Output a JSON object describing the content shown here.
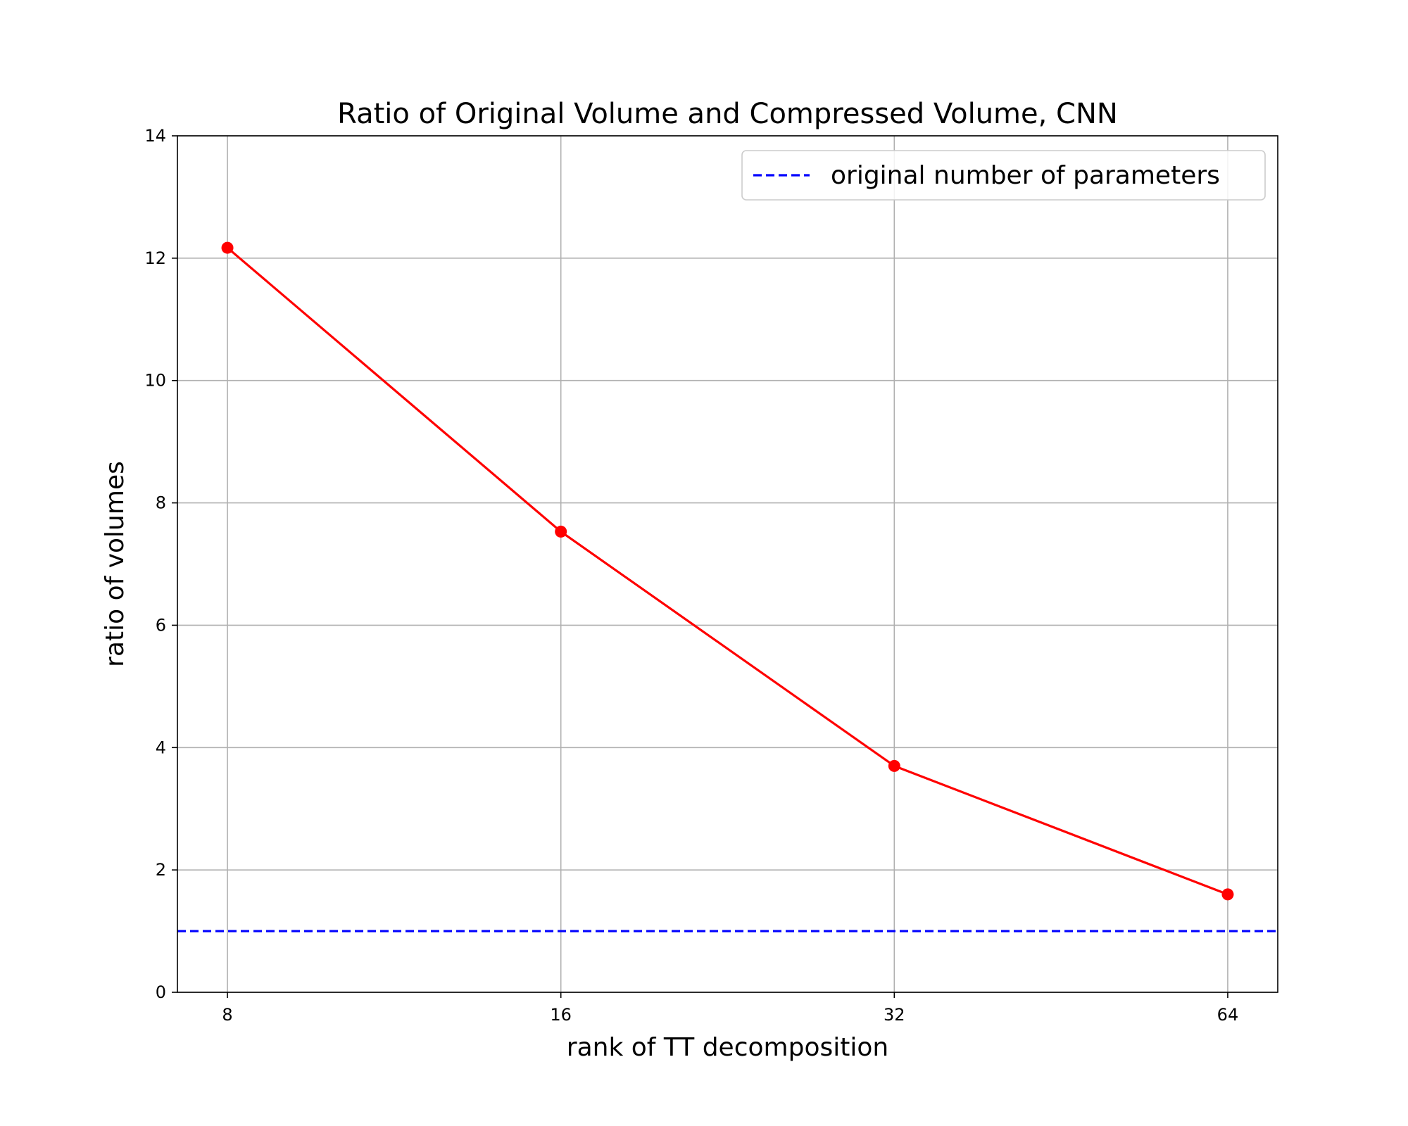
{
  "chart_data": {
    "type": "line",
    "title": "Ratio of Original Volume and Compressed Volume, CNN",
    "xlabel": "rank of TT decomposition",
    "ylabel": "ratio of volumes",
    "x_scale": "log2",
    "x": [
      8,
      16,
      32,
      64
    ],
    "x_tick_labels": [
      "8",
      "16",
      "32",
      "64"
    ],
    "ylim": [
      0,
      14
    ],
    "y_ticks": [
      0,
      2,
      4,
      6,
      8,
      10,
      12,
      14
    ],
    "y_tick_labels": [
      "0",
      "2",
      "4",
      "6",
      "8",
      "10",
      "12",
      "14"
    ],
    "grid": true,
    "legend_position": "top-right",
    "series": [
      {
        "values": [
          12.17,
          7.53,
          3.7,
          1.6
        ],
        "color": "#ff0000",
        "style": "solid",
        "marker": "circle"
      }
    ],
    "reference_lines": [
      {
        "name": "original number of parameters",
        "y": 1,
        "color": "#0000ff",
        "style": "dashed"
      }
    ]
  }
}
